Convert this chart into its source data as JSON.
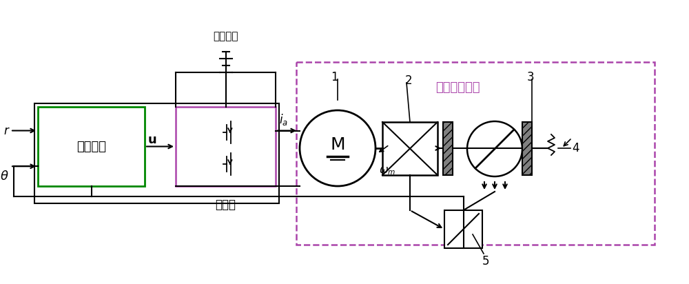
{
  "title": "",
  "bg_color": "#ffffff",
  "line_color": "#000000",
  "dashed_box_color": "#9B59B6",
  "solid_box_color": "#000000",
  "green_box_color": "#008000",
  "labels": {
    "battery": "汽车电池",
    "chopper": "斩波器",
    "controller": "微控制器",
    "throttle_body": "电子节气门体",
    "r_label": "r",
    "theta_label": "θ",
    "u_label": "u",
    "ia_label": "i_a",
    "omega_label": "ω_m",
    "num1": "1",
    "num2": "2",
    "num3": "3",
    "num4": "4",
    "num5": "5"
  }
}
